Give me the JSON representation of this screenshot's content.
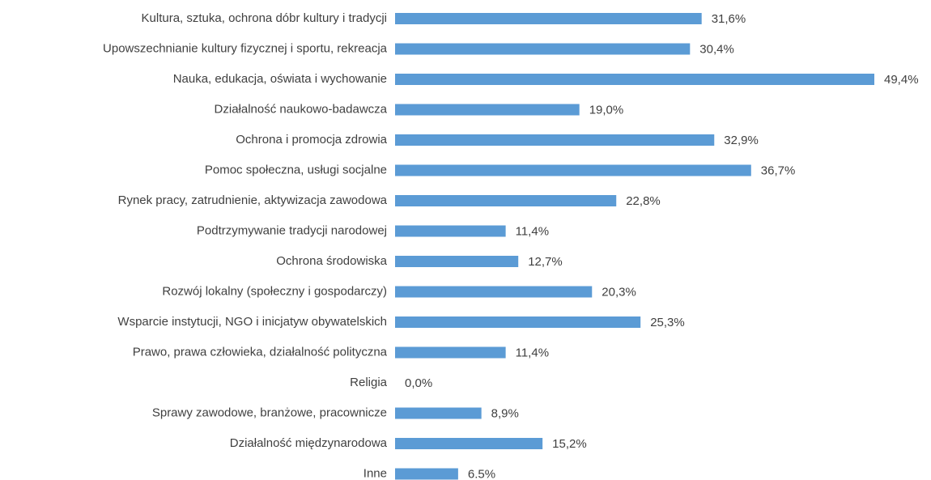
{
  "chart_data": {
    "type": "hbar",
    "categories": [
      "Kultura, sztuka, ochrona dóbr kultury i tradycji",
      "Upowszechnianie kultury fizycznej i sportu, rekreacja",
      "Nauka, edukacja, oświata i wychowanie",
      "Działalność naukowo-badawcza",
      "Ochrona i promocja zdrowia",
      "Pomoc społeczna, usługi socjalne",
      "Rynek pracy, zatrudnienie, aktywizacja zawodowa",
      "Podtrzymywanie tradycji narodowej",
      "Ochrona środowiska",
      "Rozwój lokalny (społeczny i gospodarczy)",
      "Wsparcie instytucji, NGO i inicjatyw obywatelskich",
      "Prawo, prawa człowieka, działalność polityczna",
      "Religia",
      "Sprawy zawodowe, branżowe, pracownicze",
      "Działalność międzynarodowa",
      "Inne"
    ],
    "values": [
      31.6,
      30.4,
      49.4,
      19.0,
      32.9,
      36.7,
      22.8,
      11.4,
      12.7,
      20.3,
      25.3,
      11.4,
      0.0,
      8.9,
      15.2,
      6.5
    ],
    "value_labels": [
      "31,6%",
      "30,4%",
      "49,4%",
      "19,0%",
      "32,9%",
      "36,7%",
      "22,8%",
      "11,4%",
      "12,7%",
      "20,3%",
      "25,3%",
      "11,4%",
      "0,0%",
      "8,9%",
      "15,2%",
      "6.5%"
    ],
    "color": "#5b9bd5"
  }
}
